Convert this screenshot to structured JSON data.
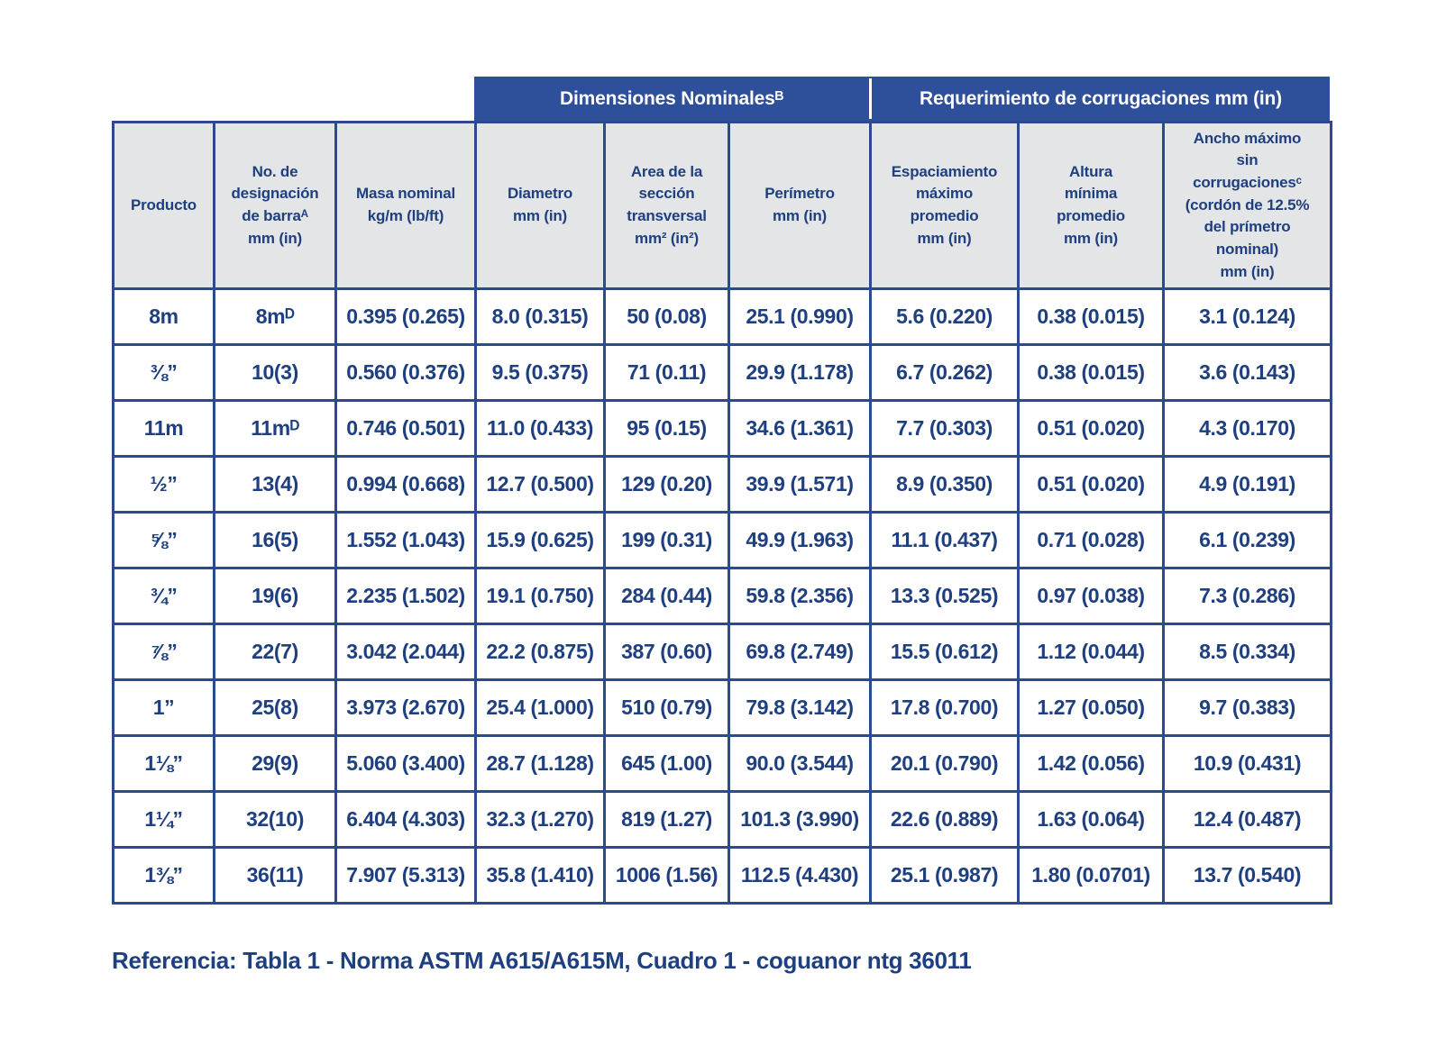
{
  "band": {
    "left": "Dimensiones Nominalesᴮ",
    "right": "Requerimiento de corrugaciones mm (in)"
  },
  "table": {
    "columns": [
      "Producto",
      "No. de\ndesignación\nde barraᴬ\nmm (in)",
      "Masa nominal\nkg/m (lb/ft)",
      "Diametro\nmm (in)",
      "Area de la\nsección\ntransversal\nmm² (in²)",
      "Perímetro\nmm (in)",
      "Espaciamiento\nmáximo\npromedio\nmm (in)",
      "Altura\nmínima\npromedio\nmm (in)",
      "Ancho máximo\nsin\ncorrugacionesᶜ\n(cordón de 12.5%\ndel prímetro\nnominal)\nmm (in)"
    ],
    "rows": [
      [
        "8m",
        "8mᴰ",
        "0.395 (0.265)",
        "8.0 (0.315)",
        "50 (0.08)",
        "25.1 (0.990)",
        "5.6 (0.220)",
        "0.38 (0.015)",
        "3.1 (0.124)"
      ],
      [
        "⅜”",
        "10(3)",
        "0.560 (0.376)",
        "9.5 (0.375)",
        "71 (0.11)",
        "29.9 (1.178)",
        "6.7 (0.262)",
        "0.38  (0.015)",
        "3.6 (0.143)"
      ],
      [
        "11m",
        "11mᴰ",
        "0.746 (0.501)",
        "11.0 (0.433)",
        "95 (0.15)",
        "34.6 (1.361)",
        "7.7 (0.303)",
        "0.51  (0.020)",
        "4.3 (0.170)"
      ],
      [
        "½”",
        "13(4)",
        "0.994 (0.668)",
        "12.7 (0.500)",
        "129 (0.20)",
        "39.9 (1.571)",
        "8.9 (0.350)",
        "0.51 (0.020)",
        "4.9 (0.191)"
      ],
      [
        "⅝”",
        "16(5)",
        "1.552 (1.043)",
        "15.9 (0.625)",
        "199 (0.31)",
        "49.9 (1.963)",
        "11.1 (0.437)",
        "0.71  (0.028)",
        "6.1 (0.239)"
      ],
      [
        "¾”",
        "19(6)",
        "2.235 (1.502)",
        "19.1 (0.750)",
        "284 (0.44)",
        "59.8 (2.356)",
        "13.3 (0.525)",
        "0.97 (0.038)",
        "7.3 (0.286)"
      ],
      [
        "⅞”",
        "22(7)",
        "3.042 (2.044)",
        "22.2 (0.875)",
        "387 (0.60)",
        "69.8 (2.749)",
        "15.5 (0.612)",
        "1.12 (0.044)",
        "8.5 (0.334)"
      ],
      [
        "1”",
        "25(8)",
        "3.973 (2.670)",
        "25.4 (1.000)",
        "510 (0.79)",
        "79.8 (3.142)",
        "17.8 (0.700)",
        "1.27 (0.050)",
        "9.7 (0.383)"
      ],
      [
        "1⅛”",
        "29(9)",
        "5.060 (3.400)",
        "28.7 (1.128)",
        "645 (1.00)",
        "90.0 (3.544)",
        "20.1 (0.790)",
        "1.42 (0.056)",
        "10.9 (0.431)"
      ],
      [
        "1¼”",
        "32(10)",
        "6.404 (4.303)",
        "32.3 (1.270)",
        "819 (1.27)",
        "101.3 (3.990)",
        "22.6 (0.889)",
        "1.63 (0.064)",
        "12.4 (0.487)"
      ],
      [
        "1⅜”",
        "36(11)",
        "7.907 (5.313)",
        "35.8 (1.410)",
        "1006 (1.56)",
        "112.5 (4.430)",
        "25.1 (0.987)",
        "1.80 (0.0701)",
        "13.7 (0.540)"
      ]
    ]
  },
  "footer": {
    "text": "Referencia: Tabla 1 - Norma ASTM A615/A615M, Cuadro 1 - coguanor ntg 36011"
  },
  "colors": {
    "band_bg": "#2e4f99",
    "border": "#2b4a8f",
    "text": "#1e3f80",
    "header_bg": "#e4e5e7",
    "page_bg": "#ffffff"
  }
}
